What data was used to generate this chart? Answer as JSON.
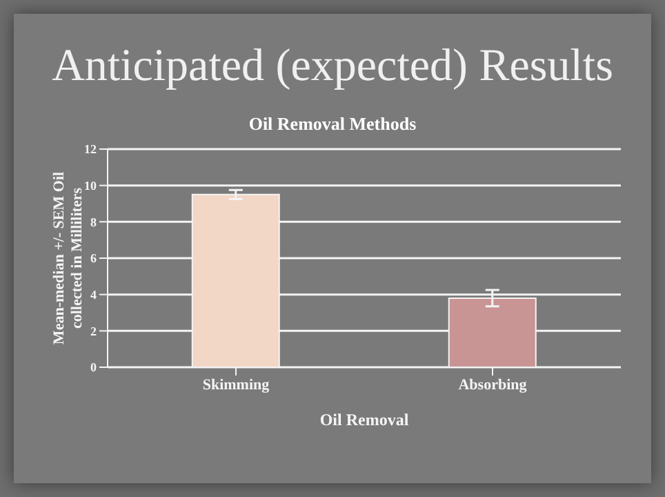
{
  "chart_data": {
    "type": "bar",
    "title": "Anticipated (expected) Results",
    "subtitle": "Oil Removal Methods",
    "xlabel": "Oil Removal",
    "ylabel": "Mean-median +/- SEM Oil collected in Milliliters",
    "categories": [
      "Skimming",
      "Absorbing"
    ],
    "values": [
      9.5,
      3.8
    ],
    "errors": [
      0.25,
      0.45
    ],
    "colors": [
      "#f2d6c6",
      "#c99494"
    ],
    "ylim": [
      0,
      12
    ],
    "yticks": [
      0,
      2,
      4,
      6,
      8,
      10,
      12
    ],
    "grid": "y"
  }
}
